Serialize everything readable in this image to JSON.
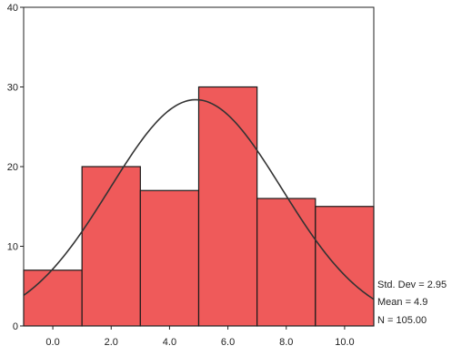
{
  "chart_data": {
    "type": "bar",
    "title": "",
    "xlabel": "",
    "ylabel": "",
    "bins": [
      {
        "from": -1.0,
        "to": 1.0,
        "value": 7
      },
      {
        "from": 1.0,
        "to": 3.0,
        "value": 20
      },
      {
        "from": 3.0,
        "to": 5.0,
        "value": 17
      },
      {
        "from": 5.0,
        "to": 7.0,
        "value": 30
      },
      {
        "from": 7.0,
        "to": 9.0,
        "value": 16
      },
      {
        "from": 9.0,
        "to": 11.0,
        "value": 15
      }
    ],
    "x_ticks": [
      0,
      2,
      4,
      6,
      8,
      10
    ],
    "x_tick_labels": [
      "0.0",
      "2.0",
      "4.0",
      "6.0",
      "8.0",
      "10.0"
    ],
    "y_ticks": [
      0,
      10,
      20,
      30,
      40
    ],
    "y_tick_labels": [
      "0",
      "10",
      "20",
      "30",
      "40"
    ],
    "xlim": [
      -1.0,
      11.0
    ],
    "ylim": [
      0,
      40
    ],
    "normal_curve": {
      "mean": 4.9,
      "std_dev": 2.95,
      "n": 105,
      "bin_width": 2
    },
    "bar_color": "#ef5a5a",
    "bar_edge_color": "#1a1a1a",
    "curve_color": "#333333",
    "grid": false,
    "stats": {
      "std_dev_label": "Std. Dev = 2.95",
      "mean_label": "Mean = 4.9",
      "n_label": "N = 105.00"
    }
  }
}
